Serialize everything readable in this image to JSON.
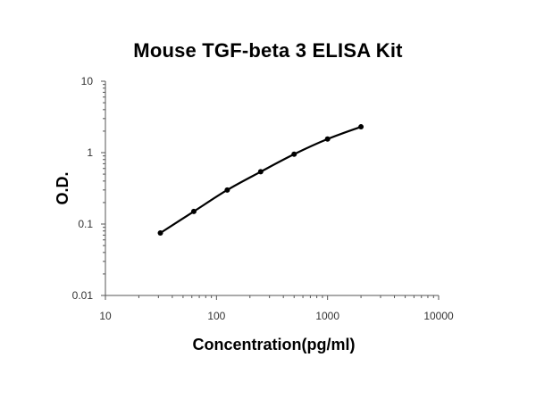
{
  "chart_data": {
    "type": "line",
    "title": "Mouse TGF-beta 3 ELISA Kit",
    "xlabel": "Concentration(pg/ml)",
    "ylabel": "O.D.",
    "xscale": "log",
    "yscale": "log",
    "xlim": [
      10,
      10000
    ],
    "ylim": [
      0.01,
      10
    ],
    "x_ticks": [
      10,
      100,
      1000,
      10000
    ],
    "y_ticks": [
      0.01,
      0.1,
      1,
      10
    ],
    "x_tick_labels": [
      "10",
      "100",
      "1000",
      "10000"
    ],
    "y_tick_labels": [
      "0.01",
      "0.1",
      "1",
      "10"
    ],
    "grid": false,
    "legend": "none",
    "series": [
      {
        "x": [
          31.25,
          62.5,
          125,
          250,
          500,
          1000,
          2000
        ],
        "y": [
          0.075,
          0.15,
          0.3,
          0.54,
          0.95,
          1.55,
          2.3
        ],
        "color": "#000000",
        "marker": "circle",
        "line": "smooth"
      }
    ]
  }
}
